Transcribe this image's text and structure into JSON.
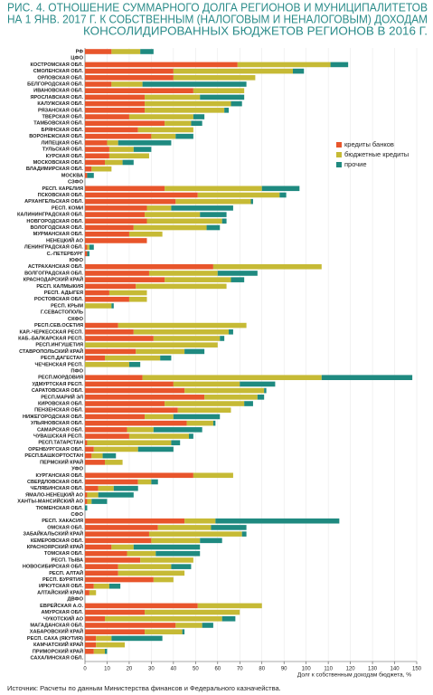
{
  "chart_data": {
    "type": "stacked-bar-horizontal",
    "title": [
      "РИС. 4. ОТНОШЕНИЕ СУММАРНОГО ДОЛГА РЕГИОНОВ И МУНИЦИПАЛИТЕТОВ",
      "НА 1 ЯНВ. 2017 Г. К СОБСТВЕННЫМ (НАЛОГОВЫМ И НЕНАЛОГОВЫМ) ДОХОДАМ",
      "КОНСОЛИДИРОВАННЫХ БЮДЖЕТОВ РЕГИОНОВ В 2016 Г."
    ],
    "x_label": "Долг к собственным доходам бюджета, %",
    "source": "Источник: Расчеты по данным Министерства финансов и Федерального казначейства.",
    "categories": [
      "РФ",
      "ЦФО",
      "КОСТРОМСКАЯ ОБЛ.",
      "СМОЛЕНСКАЯ ОБЛ.",
      "ОРЛОВСКАЯ ОБЛ.",
      "БЕЛГОРОДСКАЯ ОБЛ.",
      "ИВАНОВСКАЯ ОБЛ.",
      "ЯРОСЛАВСКАЯ ОБЛ.",
      "КАЛУЖСКАЯ ОБЛ.",
      "РЯЗАНСКАЯ ОБЛ.",
      "ТВЕРСКАЯ ОБЛ.",
      "ТАМБОВСКАЯ ОБЛ.",
      "БРЯНСКАЯ ОБЛ.",
      "ВОРОНЕЖСКАЯ ОБЛ.",
      "ЛИПЕЦКАЯ ОБЛ.",
      "ТУЛЬСКАЯ ОБЛ.",
      "КУРСКАЯ ОБЛ.",
      "МОСКОВСКАЯ ОБЛ.",
      "ВЛАДИМИРСКАЯ ОБЛ.",
      "МОСКВА",
      "СЗФО",
      "РЕСП. КАРЕЛИЯ",
      "ПСКОВСКАЯ ОБЛ.",
      "АРХАНГЕЛЬСКАЯ ОБЛ.",
      "РЕСП. КОМИ",
      "КАЛИНИНГРАДСКАЯ ОБЛ.",
      "НОВГОРОДСКАЯ ОБЛ.",
      "ВОЛОГОДСКАЯ ОБЛ.",
      "МУРМАНСКАЯ ОБЛ.",
      "НЕНЕЦКИЙ АО",
      "ЛЕНИНГРАДСКАЯ ОБЛ.",
      "С.-ПЕТЕРБУРГ",
      "ЮФО",
      "АСТРАХАНСКАЯ ОБЛ.",
      "ВОЛГОГРАДСКАЯ ОБЛ.",
      "КРАСНОДАРСКИЙ КРАЙ",
      "РЕСП. КАЛМЫКИЯ",
      "РЕСП. АДЫГЕЯ",
      "РОСТОВСКАЯ ОБЛ.",
      "РЕСП. КРЫМ",
      "Г.СЕВАСТОПОЛЬ",
      "СКФО",
      "РЕСП.СЕВ.ОСЕТИЯ",
      "КАР.-ЧЕРКЕССКАЯ РЕСП.",
      "КАБ.-БАЛКАРСКАЯ РЕСП.",
      "РЕСП.ИНГУШЕТИЯ",
      "СТАВРОПОЛЬСКИЙ КРАЙ",
      "РЕСП.ДАГЕСТАН",
      "ЧЕЧЕНСКАЯ РЕСП.",
      "ПФО",
      "РЕСП.МОРДОВИЯ",
      "УДМУРТСКАЯ РЕСП.",
      "САРАТОВСКАЯ ОБЛ.",
      "РЕСП.МАРИЙ ЭЛ",
      "КИРОВСКАЯ ОБЛ.",
      "ПЕНЗЕНСКАЯ ОБЛ.",
      "НИЖЕГОРОДСКАЯ ОБЛ.",
      "УЛЬЯНОВСКАЯ ОБЛ.",
      "САМАРСКАЯ ОБЛ.",
      "ЧУВАШСКАЯ РЕСП.",
      "РЕСП.ТАТАРСТАН",
      "ОРЕНБУРГСКАЯ ОБЛ.",
      "РЕСП.БАШКОРТОСТАН",
      "ПЕРМСКИЙ КРАЙ",
      "УФО",
      "КУРГАНСКАЯ ОБЛ.",
      "СВЕРДЛОВСКАЯ ОБЛ.",
      "ЧЕЛЯБИНСКАЯ ОБЛ.",
      "ЯМАЛО-НЕНЕЦКИЙ АО",
      "ХАНТЫ-МАНСИЙСКИЙ АО",
      "ТЮМЕНСКАЯ ОБЛ.",
      "СФО",
      "РЕСП. ХАКАСИЯ",
      "ОМСКАЯ ОБЛ.",
      "ЗАБАЙКАЛЬСКИЙ КРАЙ",
      "КЕМЕРОВСКАЯ ОБЛ.",
      "КРАСНОЯРСКИЙ КРАЙ",
      "ТОМСКАЯ ОБЛ.",
      "РЕСП. ТЫВА",
      "НОВОСИБИРСКАЯ ОБЛ.",
      "РЕСП. АЛТАЙ",
      "РЕСП. БУРЯТИЯ",
      "ИРКУТСКАЯ ОБЛ.",
      "АЛТАЙСКИЙ КРАЙ",
      "ДВФО",
      "ЕВРЕЙСКАЯ А.О.",
      "АМУРСКАЯ ОБЛ.",
      "ЧУКОТСКИЙ АО",
      "МАГАДАНСКАЯ ОБЛ.",
      "ХАБАРОВСКИЙ КРАЙ",
      "РЕСП. САХА (ЯКУТИЯ)",
      "КАМЧАТСКИЙ КРАЙ",
      "ПРИМОРСКИЙ КРАЙ",
      "САХАЛИНСКАЯ ОБЛ."
    ],
    "series": [
      {
        "name": "кредиты банков",
        "color": "#e8552b",
        "values": [
          12,
          null,
          69,
          40,
          40,
          12,
          49,
          27,
          27,
          27,
          20,
          36,
          24,
          30,
          10,
          11,
          11,
          9,
          3,
          1,
          null,
          36,
          51,
          41,
          28,
          27,
          28,
          22,
          20,
          28,
          1,
          1,
          null,
          58,
          29,
          36,
          23,
          11,
          20,
          0,
          0,
          null,
          15,
          22,
          31,
          0,
          23,
          9,
          0,
          null,
          26,
          40,
          45,
          54,
          36,
          42,
          27,
          46,
          19,
          20,
          1,
          4,
          3,
          9,
          null,
          49,
          24,
          6,
          1,
          1,
          0,
          null,
          45,
          33,
          29,
          30,
          12,
          19,
          25,
          15,
          15,
          31,
          4,
          2,
          null,
          51,
          27,
          9,
          41,
          27,
          5,
          5,
          4,
          0
        ]
      },
      {
        "name": "бюджетные кредиты",
        "color": "#c6ba35",
        "values": [
          13,
          null,
          42,
          54,
          37,
          14,
          23,
          25,
          39,
          36,
          29,
          12,
          25,
          11,
          5,
          11,
          18,
          8,
          9,
          0,
          null,
          44,
          37,
          34,
          11,
          25,
          34,
          33,
          15,
          0,
          1,
          0,
          null,
          49,
          31,
          30,
          41,
          17,
          8,
          12,
          0,
          null,
          58,
          43,
          30,
          60,
          22,
          25,
          20,
          null,
          81,
          30,
          36,
          24,
          36,
          24,
          13,
          12,
          12,
          27,
          38,
          20,
          5,
          8,
          null,
          18,
          6,
          7,
          5,
          2,
          0,
          null,
          14,
          24,
          42,
          22,
          10,
          13,
          24,
          24,
          30,
          9,
          7,
          3,
          null,
          29,
          43,
          53,
          12,
          17,
          7,
          13,
          5,
          0
        ]
      },
      {
        "name": "прочие",
        "color": "#1f8a80",
        "values": [
          6,
          null,
          8,
          5,
          0,
          47,
          0,
          20,
          5,
          2,
          5,
          5,
          0,
          8,
          24,
          8,
          0,
          5,
          0,
          3,
          null,
          17,
          3,
          1,
          28,
          12,
          2,
          6,
          0,
          0,
          2,
          1,
          null,
          0,
          18,
          6,
          0,
          0,
          0,
          1,
          0,
          null,
          0,
          2,
          2,
          0,
          9,
          5,
          5,
          null,
          41,
          16,
          1,
          3,
          4,
          0,
          21,
          1,
          22,
          2,
          4,
          16,
          6,
          0,
          null,
          0,
          3,
          11,
          16,
          7,
          1,
          null,
          56,
          16,
          2,
          10,
          30,
          20,
          0,
          9,
          0,
          0,
          5,
          0,
          null,
          0,
          0,
          6,
          5,
          1,
          23,
          0,
          1,
          0
        ]
      }
    ],
    "xlim": [
      0,
      150
    ],
    "xticks": [
      0,
      10,
      20,
      30,
      40,
      50,
      60,
      70,
      80,
      90,
      100,
      110,
      120,
      130,
      140,
      150
    ],
    "grid": true,
    "legend": "upper right"
  }
}
